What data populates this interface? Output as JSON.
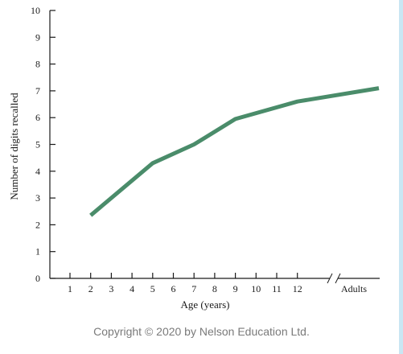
{
  "chart_data": {
    "type": "line",
    "title": "",
    "xlabel": "Age (years)",
    "ylabel": "Number of digits recalled",
    "x_tick_labels": [
      "1",
      "2",
      "3",
      "4",
      "5",
      "6",
      "7",
      "8",
      "9",
      "10",
      "11",
      "12",
      "Adults"
    ],
    "x_axis_break": "between 12 and Adults",
    "y_ticks": [
      0,
      1,
      2,
      3,
      4,
      5,
      6,
      7,
      8,
      9,
      10
    ],
    "ylim": [
      0,
      10
    ],
    "grid": false,
    "series": [
      {
        "color": "#4a8c6a",
        "points": [
          {
            "x": "2",
            "y": 2.35
          },
          {
            "x": "5",
            "y": 4.3
          },
          {
            "x": "7",
            "y": 5.0
          },
          {
            "x": "9",
            "y": 5.95
          },
          {
            "x": "12",
            "y": 6.6
          },
          {
            "x": "Adults",
            "y": 7.1
          }
        ]
      }
    ]
  },
  "footer": {
    "copyright": "Copyright © 2020 by Nelson Education Ltd."
  },
  "colors": {
    "line": "#4a8c6a",
    "side_bar": "#c9e6f3",
    "axis": "#1a1a1a"
  }
}
